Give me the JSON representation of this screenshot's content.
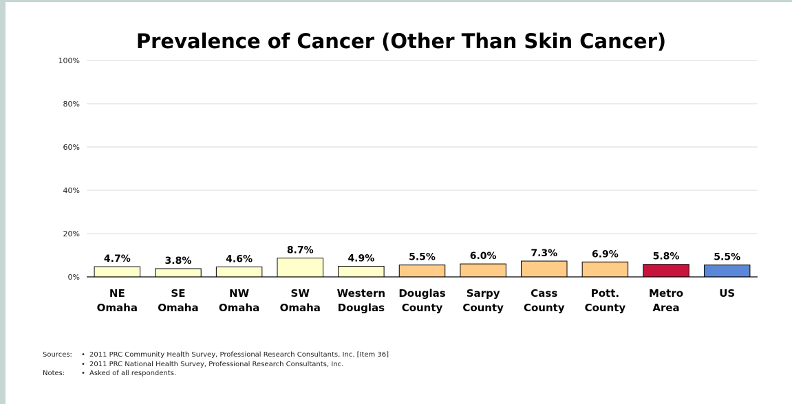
{
  "chart_data": {
    "type": "bar",
    "title": "Prevalence of Cancer (Other Than Skin Cancer)",
    "categories": [
      [
        "NE",
        "Omaha"
      ],
      [
        "SE",
        "Omaha"
      ],
      [
        "NW",
        "Omaha"
      ],
      [
        "SW",
        "Omaha"
      ],
      [
        "Western",
        "Douglas"
      ],
      [
        "Douglas",
        "County"
      ],
      [
        "Sarpy",
        "County"
      ],
      [
        "Cass",
        "County"
      ],
      [
        "Pott.",
        "County"
      ],
      [
        "Metro",
        "Area"
      ],
      [
        "US"
      ]
    ],
    "values": [
      4.7,
      3.8,
      4.6,
      8.7,
      4.9,
      5.5,
      6.0,
      7.3,
      6.9,
      5.8,
      5.5
    ],
    "value_labels": [
      "4.7%",
      "3.8%",
      "4.6%",
      "8.7%",
      "4.9%",
      "5.5%",
      "6.0%",
      "7.3%",
      "6.9%",
      "5.8%",
      "5.5%"
    ],
    "bar_colors": [
      "#ffffcc",
      "#ffffcc",
      "#ffffcc",
      "#ffffcc",
      "#ffffcc",
      "#ffcc88",
      "#ffcc88",
      "#ffcc88",
      "#ffcc88",
      "#c8143c",
      "#5b87d8"
    ],
    "ylim": [
      0,
      100
    ],
    "yticks": [
      0,
      20,
      40,
      60,
      80,
      100
    ],
    "ytick_labels": [
      "0%",
      "20%",
      "40%",
      "60%",
      "80%",
      "100%"
    ],
    "xlabel": "",
    "ylabel": "",
    "grid": true
  },
  "notes": {
    "sources_label": "Sources:",
    "notes_label": "Notes:",
    "bullet": "•",
    "source_1": "2011 PRC Community Health Survey,  Professional Research Consultants, Inc.  [Item 36]",
    "source_2": "2011 PRC National Health Survey, Professional Research Consultants, Inc.",
    "note_1": "Asked of all respondents."
  }
}
